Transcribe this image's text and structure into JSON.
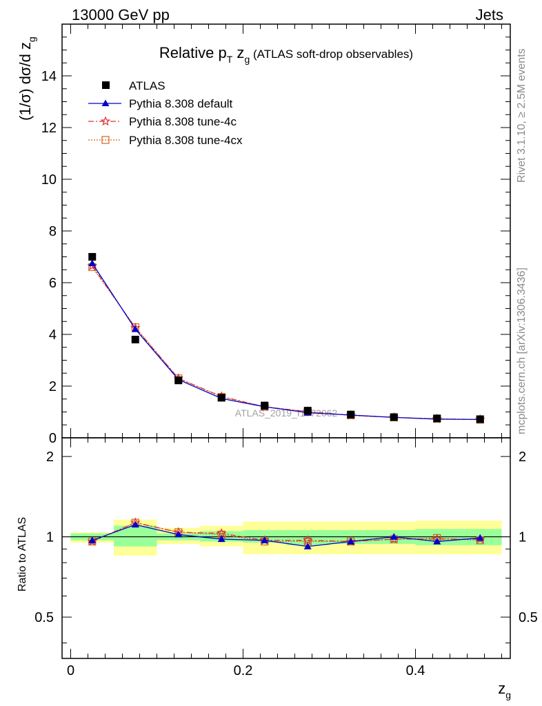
{
  "header": {
    "left_label": "13000 GeV pp",
    "right_label": "Jets"
  },
  "side": {
    "rivet": "Rivet 3.1.10, ≥ 2.5M events",
    "mcplots": "mcplots.cern.ch [arXiv:1306.3436]"
  },
  "watermark": "ATLAS_2019_I1772062",
  "colors": {
    "data": "#000000",
    "default": "#0000cc",
    "tune4c": "#dd3333",
    "tune4cx": "#cc6622",
    "band_inner": "#99ff99",
    "band_outer": "#ffff99"
  },
  "chart_data": [
    {
      "type": "scatter",
      "panel": "main",
      "title_main": "Relative p",
      "title_sub_T": "T",
      "title_zg": " z",
      "title_sub_g": "g",
      "title_rest": " (ATLAS soft-drop observables)",
      "ylabel": "(1/σ) dσ/d z",
      "ylabel_sub": "g",
      "ylim": [
        0,
        16
      ],
      "xlim": [
        -0.01,
        0.51
      ],
      "y_ticks": [
        "0",
        "2",
        "4",
        "6",
        "8",
        "10",
        "12",
        "14"
      ],
      "legend": [
        "ATLAS",
        "Pythia 8.308 default",
        "Pythia 8.308 tune-4c",
        "Pythia 8.308 tune-4cx"
      ],
      "x": [
        0.025,
        0.075,
        0.125,
        0.175,
        0.225,
        0.275,
        0.325,
        0.375,
        0.425,
        0.475
      ],
      "series": [
        {
          "name": "ATLAS",
          "values": [
            7.0,
            3.8,
            2.22,
            1.55,
            1.25,
            1.05,
            0.9,
            0.8,
            0.75,
            0.72
          ]
        },
        {
          "name": "Pythia 8.308 default",
          "values": [
            6.75,
            4.2,
            2.25,
            1.52,
            1.2,
            0.97,
            0.88,
            0.79,
            0.72,
            0.71
          ]
        },
        {
          "name": "Pythia 8.308 tune-4c",
          "values": [
            6.65,
            4.25,
            2.3,
            1.6,
            1.2,
            1.01,
            0.87,
            0.79,
            0.73,
            0.71
          ]
        },
        {
          "name": "Pythia 8.308 tune-4cx",
          "values": [
            6.6,
            4.28,
            2.3,
            1.58,
            1.2,
            1.0,
            0.87,
            0.79,
            0.74,
            0.7
          ]
        }
      ]
    },
    {
      "type": "scatter",
      "panel": "ratio",
      "ylabel": "Ratio to ATLAS",
      "xlabel": "z",
      "xlabel_sub": "g",
      "ylim": [
        0.35,
        2.35
      ],
      "y_ticks": [
        "0.5",
        "1",
        "2"
      ],
      "x_ticks": [
        "0",
        "0.2",
        "0.4"
      ],
      "bands": {
        "x_edges": [
          0.0,
          0.05,
          0.1,
          0.15,
          0.2,
          0.25,
          0.3,
          0.35,
          0.4,
          0.45,
          0.5
        ],
        "inner": [
          [
            0.97,
            1.03
          ],
          [
            0.92,
            1.1
          ],
          [
            0.97,
            1.03
          ],
          [
            0.96,
            1.05
          ],
          [
            0.95,
            1.06
          ],
          [
            0.93,
            1.06
          ],
          [
            0.94,
            1.06
          ],
          [
            0.94,
            1.06
          ],
          [
            0.93,
            1.07
          ],
          [
            0.93,
            1.07
          ]
        ],
        "outer": [
          [
            0.95,
            1.04
          ],
          [
            0.85,
            1.16
          ],
          [
            0.94,
            1.08
          ],
          [
            0.92,
            1.1
          ],
          [
            0.86,
            1.14
          ],
          [
            0.86,
            1.14
          ],
          [
            0.86,
            1.14
          ],
          [
            0.86,
            1.14
          ],
          [
            0.86,
            1.15
          ],
          [
            0.86,
            1.15
          ]
        ]
      },
      "series": [
        {
          "name": "Pythia 8.308 default",
          "values": [
            0.97,
            1.11,
            1.02,
            0.98,
            0.97,
            0.92,
            0.96,
            1.0,
            0.96,
            0.99
          ]
        },
        {
          "name": "Pythia 8.308 tune-4c",
          "values": [
            0.96,
            1.13,
            1.04,
            1.03,
            0.97,
            0.97,
            0.96,
            0.98,
            0.98,
            0.98
          ]
        },
        {
          "name": "Pythia 8.308 tune-4cx",
          "values": [
            0.96,
            1.13,
            1.04,
            1.02,
            0.96,
            0.96,
            0.96,
            0.98,
            0.99,
            0.97
          ]
        }
      ]
    }
  ]
}
